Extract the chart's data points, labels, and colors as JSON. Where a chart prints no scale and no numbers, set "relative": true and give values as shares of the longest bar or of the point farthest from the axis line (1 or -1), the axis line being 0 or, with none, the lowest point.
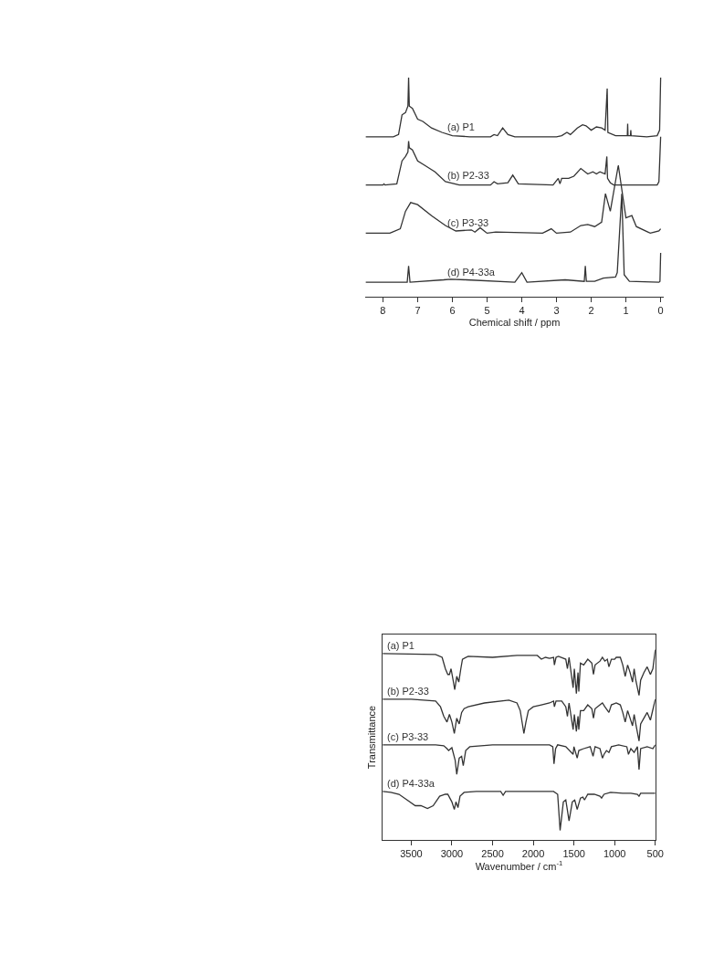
{
  "chart_data": [
    {
      "type": "line",
      "relative": true,
      "xlabel": "Chemical shift / ppm",
      "xlim": [
        8.5,
        -0.08
      ],
      "xticks": [
        8,
        7,
        6,
        5,
        4,
        3,
        2,
        1,
        0
      ],
      "tick_labels": "x",
      "legend": false,
      "marker": "none",
      "line_style": "solid",
      "series": [
        {
          "name": "(a) P1",
          "color": "#333333",
          "x": [
            8.5,
            7.7,
            7.55,
            7.45,
            7.35,
            7.28,
            7.26,
            7.24,
            7.15,
            7.0,
            6.85,
            6.6,
            6.3,
            6.0,
            5.5,
            4.9,
            4.8,
            4.7,
            4.55,
            4.4,
            4.2,
            3.0,
            2.85,
            2.7,
            2.6,
            2.4,
            2.25,
            2.15,
            2.0,
            1.85,
            1.7,
            1.6,
            1.54,
            1.52,
            1.3,
            0.96,
            0.95,
            0.94,
            0.87,
            0.86,
            0.85,
            0.4,
            0.1,
            0.03,
            0.0
          ],
          "values": [
            0.73,
            0.73,
            0.74,
            0.83,
            0.84,
            0.87,
            1.0,
            0.87,
            0.86,
            0.81,
            0.8,
            0.77,
            0.75,
            0.735,
            0.73,
            0.73,
            0.74,
            0.735,
            0.77,
            0.74,
            0.73,
            0.73,
            0.735,
            0.75,
            0.74,
            0.77,
            0.785,
            0.78,
            0.76,
            0.775,
            0.77,
            0.76,
            0.95,
            0.75,
            0.735,
            0.735,
            0.79,
            0.735,
            0.735,
            0.76,
            0.735,
            0.73,
            0.735,
            0.76,
            1.0
          ]
        },
        {
          "name": "(b) P2-33",
          "color": "#333333",
          "x": [
            8.5,
            8.0,
            7.97,
            7.94,
            7.6,
            7.45,
            7.35,
            7.28,
            7.26,
            7.24,
            7.15,
            7.0,
            6.8,
            6.5,
            6.2,
            5.8,
            4.9,
            4.8,
            4.7,
            4.4,
            4.26,
            4.1,
            3.1,
            2.95,
            2.9,
            2.85,
            2.65,
            2.5,
            2.3,
            2.1,
            1.95,
            1.85,
            1.75,
            1.6,
            1.55,
            1.53,
            1.45,
            1.35,
            0.5,
            0.1,
            0.05,
            0.0
          ],
          "values": [
            0.51,
            0.51,
            0.515,
            0.51,
            0.515,
            0.62,
            0.64,
            0.66,
            0.71,
            0.68,
            0.67,
            0.62,
            0.6,
            0.57,
            0.525,
            0.51,
            0.51,
            0.525,
            0.515,
            0.52,
            0.555,
            0.515,
            0.51,
            0.54,
            0.515,
            0.54,
            0.54,
            0.55,
            0.585,
            0.56,
            0.57,
            0.56,
            0.57,
            0.56,
            0.64,
            0.54,
            0.52,
            0.51,
            0.51,
            0.51,
            0.525,
            0.73
          ]
        },
        {
          "name": "(c) P3-33",
          "color": "#333333",
          "x": [
            8.5,
            7.8,
            7.5,
            7.35,
            7.2,
            7.0,
            6.6,
            6.2,
            5.9,
            5.45,
            5.35,
            5.2,
            5.0,
            4.75,
            3.4,
            3.15,
            3.0,
            2.6,
            2.3,
            2.1,
            1.9,
            1.7,
            1.59,
            1.45,
            1.22,
            1.0,
            0.83,
            0.7,
            0.3,
            0.05,
            0.0
          ],
          "values": [
            0.29,
            0.29,
            0.31,
            0.39,
            0.43,
            0.42,
            0.37,
            0.325,
            0.3,
            0.305,
            0.295,
            0.315,
            0.29,
            0.295,
            0.29,
            0.31,
            0.29,
            0.295,
            0.325,
            0.33,
            0.32,
            0.34,
            0.47,
            0.39,
            0.6,
            0.36,
            0.37,
            0.32,
            0.29,
            0.3,
            0.31
          ]
        },
        {
          "name": "(d) P4-33a",
          "color": "#333333",
          "x": [
            8.5,
            7.3,
            7.26,
            7.22,
            6.25,
            6.05,
            5.6,
            4.2,
            4.0,
            3.85,
            2.75,
            2.2,
            2.17,
            2.14,
            1.9,
            1.65,
            1.3,
            1.25,
            1.12,
            1.05,
            0.9,
            0.05,
            0.02,
            0.0
          ],
          "values": [
            0.066,
            0.066,
            0.14,
            0.066,
            0.077,
            0.08,
            0.077,
            0.066,
            0.11,
            0.066,
            0.077,
            0.07,
            0.14,
            0.07,
            0.07,
            0.085,
            0.09,
            0.11,
            0.47,
            0.1,
            0.07,
            0.066,
            0.07,
            0.2
          ]
        }
      ]
    },
    {
      "type": "line",
      "relative": true,
      "xlabel": "Wavenumber / cm$^{-1}$",
      "ylabel": "Transmittance",
      "xlim": [
        3850,
        500
      ],
      "xticks": [
        3500,
        3000,
        2500,
        2000,
        1500,
        1000,
        500
      ],
      "tick_labels": "x",
      "legend": false,
      "marker": "none",
      "line_style": "solid",
      "series": [
        {
          "name": "(a) P1",
          "color": "#333333",
          "x": [
            3850,
            3200,
            3120,
            3080,
            3050,
            3030,
            3010,
            2985,
            2965,
            2940,
            2915,
            2890,
            2870,
            2800,
            2500,
            2200,
            1950,
            1900,
            1850,
            1800,
            1750,
            1740,
            1720,
            1690,
            1600,
            1580,
            1560,
            1510,
            1495,
            1470,
            1450,
            1440,
            1420,
            1380,
            1330,
            1280,
            1260,
            1240,
            1180,
            1150,
            1120,
            1090,
            1070,
            1040,
            1000,
            980,
            930,
            900,
            870,
            840,
            810,
            780,
            760,
            740,
            700,
            680,
            640,
            600,
            560,
            530,
            500
          ],
          "values": [
            0.98,
            0.975,
            0.96,
            0.9,
            0.87,
            0.87,
            0.9,
            0.84,
            0.79,
            0.86,
            0.83,
            0.9,
            0.95,
            0.965,
            0.96,
            0.97,
            0.97,
            0.95,
            0.96,
            0.955,
            0.96,
            0.92,
            0.96,
            0.965,
            0.95,
            0.9,
            0.96,
            0.8,
            0.9,
            0.77,
            0.88,
            0.78,
            0.93,
            0.92,
            0.95,
            0.93,
            0.87,
            0.92,
            0.94,
            0.96,
            0.94,
            0.95,
            0.91,
            0.95,
            0.95,
            0.96,
            0.96,
            0.92,
            0.86,
            0.92,
            0.88,
            0.83,
            0.9,
            0.84,
            0.76,
            0.84,
            0.88,
            0.91,
            0.87,
            0.9,
            1.0
          ]
        },
        {
          "name": "(b) P2-33",
          "color": "#333333",
          "x": [
            3850,
            3500,
            3200,
            3140,
            3100,
            3060,
            3030,
            3000,
            2970,
            2940,
            2910,
            2880,
            2850,
            2800,
            2600,
            2300,
            2200,
            2160,
            2130,
            2115,
            2090,
            2060,
            2000,
            1900,
            1800,
            1750,
            1740,
            1720,
            1650,
            1600,
            1580,
            1560,
            1510,
            1495,
            1470,
            1450,
            1440,
            1420,
            1380,
            1330,
            1280,
            1260,
            1240,
            1180,
            1150,
            1120,
            1070,
            1040,
            980,
            930,
            900,
            870,
            840,
            810,
            780,
            760,
            740,
            700,
            680,
            640,
            600,
            560,
            500
          ],
          "values": [
            0.74,
            0.74,
            0.73,
            0.7,
            0.65,
            0.62,
            0.66,
            0.62,
            0.56,
            0.64,
            0.61,
            0.67,
            0.69,
            0.7,
            0.72,
            0.735,
            0.72,
            0.68,
            0.6,
            0.56,
            0.62,
            0.68,
            0.7,
            0.71,
            0.72,
            0.73,
            0.7,
            0.73,
            0.73,
            0.7,
            0.65,
            0.72,
            0.58,
            0.66,
            0.57,
            0.65,
            0.58,
            0.68,
            0.68,
            0.71,
            0.69,
            0.64,
            0.69,
            0.71,
            0.72,
            0.7,
            0.67,
            0.71,
            0.72,
            0.71,
            0.67,
            0.62,
            0.68,
            0.64,
            0.6,
            0.66,
            0.61,
            0.52,
            0.61,
            0.64,
            0.67,
            0.63,
            0.74
          ]
        },
        {
          "name": "(c) P3-33",
          "color": "#333333",
          "x": [
            3850,
            3200,
            3100,
            3060,
            3040,
            3000,
            2960,
            2940,
            2910,
            2880,
            2860,
            2830,
            2780,
            2500,
            2100,
            1800,
            1760,
            1745,
            1725,
            1700,
            1600,
            1510,
            1500,
            1460,
            1440,
            1380,
            1300,
            1265,
            1240,
            1180,
            1150,
            1130,
            1100,
            1070,
            1040,
            950,
            850,
            830,
            800,
            760,
            720,
            700,
            680,
            600,
            530,
            500
          ],
          "values": [
            0.5,
            0.5,
            0.495,
            0.48,
            0.47,
            0.485,
            0.42,
            0.345,
            0.43,
            0.44,
            0.39,
            0.47,
            0.49,
            0.5,
            0.5,
            0.5,
            0.49,
            0.4,
            0.48,
            0.5,
            0.49,
            0.45,
            0.49,
            0.43,
            0.47,
            0.48,
            0.49,
            0.44,
            0.49,
            0.48,
            0.43,
            0.45,
            0.47,
            0.46,
            0.49,
            0.5,
            0.49,
            0.45,
            0.48,
            0.46,
            0.49,
            0.37,
            0.48,
            0.49,
            0.48,
            0.5
          ]
        },
        {
          "name": "(d) P4-33a",
          "color": "#333333",
          "x": [
            3850,
            3750,
            3650,
            3550,
            3450,
            3380,
            3300,
            3230,
            3150,
            3080,
            3050,
            3000,
            2970,
            2950,
            2925,
            2900,
            2850,
            2700,
            2400,
            2370,
            2340,
            2000,
            1750,
            1700,
            1670,
            1630,
            1600,
            1560,
            1520,
            1490,
            1460,
            1420,
            1390,
            1370,
            1330,
            1250,
            1180,
            1160,
            1130,
            1050,
            900,
            800,
            720,
            700,
            680,
            600,
            500
          ],
          "values": [
            0.255,
            0.25,
            0.24,
            0.21,
            0.18,
            0.18,
            0.165,
            0.18,
            0.23,
            0.24,
            0.24,
            0.2,
            0.16,
            0.2,
            0.17,
            0.23,
            0.25,
            0.255,
            0.255,
            0.235,
            0.255,
            0.255,
            0.255,
            0.24,
            0.05,
            0.2,
            0.21,
            0.1,
            0.2,
            0.21,
            0.16,
            0.22,
            0.225,
            0.21,
            0.24,
            0.24,
            0.23,
            0.22,
            0.24,
            0.25,
            0.245,
            0.245,
            0.24,
            0.23,
            0.245,
            0.245,
            0.245
          ]
        }
      ]
    }
  ]
}
